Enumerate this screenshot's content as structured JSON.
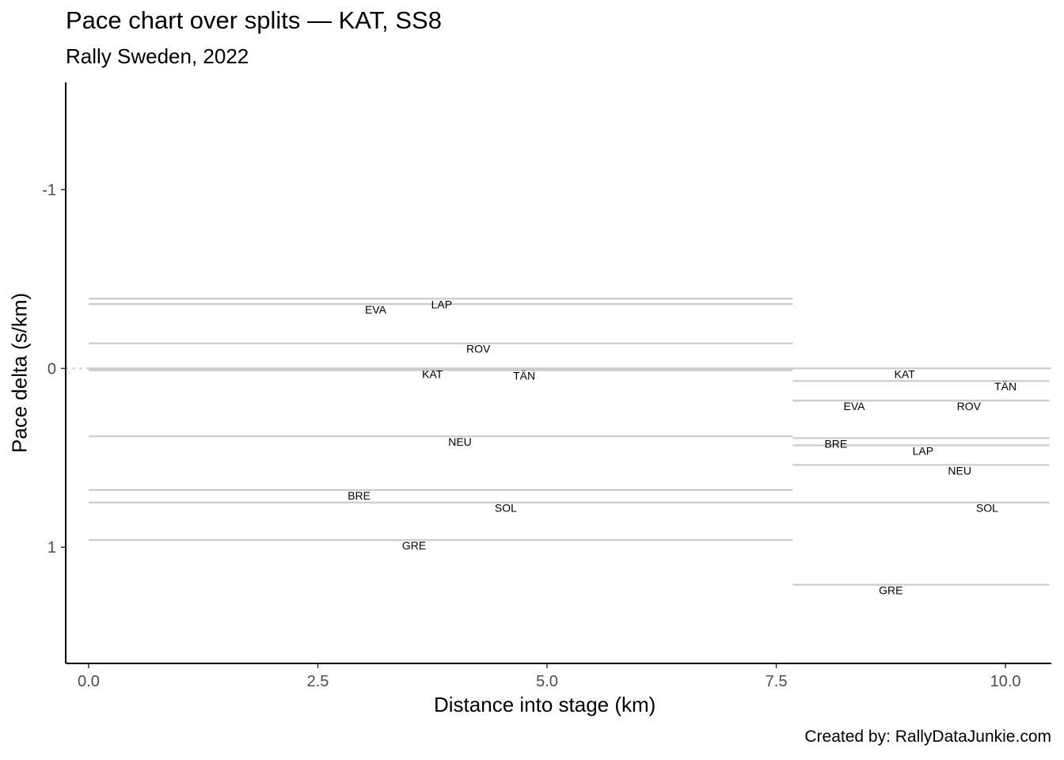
{
  "chart_data": {
    "type": "line",
    "title": "Pace chart over splits — KAT, SS8",
    "subtitle": "Rally Sweden, 2022",
    "xlabel": "Distance into stage (km)",
    "ylabel": "Pace delta (s/km)",
    "caption": "Created by: RallyDataJunkie.com",
    "xlim": [
      -0.25,
      10.5
    ],
    "ylim": [
      1.65,
      -1.6
    ],
    "y_reversed": true,
    "x_ticks": [
      {
        "value": 0.0,
        "label": "0.0"
      },
      {
        "value": 2.5,
        "label": "2.5"
      },
      {
        "value": 5.0,
        "label": "5.0"
      },
      {
        "value": 7.5,
        "label": "7.5"
      },
      {
        "value": 10.0,
        "label": "10.0"
      }
    ],
    "y_ticks": [
      {
        "value": -1,
        "label": "-1"
      },
      {
        "value": 0,
        "label": "0"
      },
      {
        "value": 1,
        "label": "1"
      }
    ],
    "reference_line": {
      "y": 0,
      "style": "dotted",
      "color": "#cccccc"
    },
    "line_color": "#cccccc",
    "splits": [
      {
        "x_start": 0.0,
        "x_end": 7.68,
        "series": [
          {
            "name": "LAP",
            "value": -0.39,
            "label_x": 3.85
          },
          {
            "name": "EVA",
            "value": -0.36,
            "label_x": 3.13
          },
          {
            "name": "ROV",
            "value": -0.14,
            "label_x": 4.25
          },
          {
            "name": "KAT",
            "value": 0.0,
            "label_x": 3.75
          },
          {
            "name": "TÄN",
            "value": 0.01,
            "label_x": 4.75
          },
          {
            "name": "NEU",
            "value": 0.38,
            "label_x": 4.05
          },
          {
            "name": "BRE",
            "value": 0.68,
            "label_x": 2.95
          },
          {
            "name": "SOL",
            "value": 0.75,
            "label_x": 4.55
          },
          {
            "name": "GRE",
            "value": 0.96,
            "label_x": 3.55
          }
        ]
      },
      {
        "x_start": 7.68,
        "x_end": 10.48,
        "series": [
          {
            "name": "KAT",
            "value": 0.0,
            "label_x": 8.9
          },
          {
            "name": "TÄN",
            "value": 0.07,
            "label_x": 10.0
          },
          {
            "name": "EVA",
            "value": 0.18,
            "label_x": 8.35
          },
          {
            "name": "ROV",
            "value": 0.18,
            "label_x": 9.6
          },
          {
            "name": "BRE",
            "value": 0.39,
            "label_x": 8.15
          },
          {
            "name": "LAP",
            "value": 0.43,
            "label_x": 9.1
          },
          {
            "name": "NEU",
            "value": 0.54,
            "label_x": 9.5
          },
          {
            "name": "SOL",
            "value": 0.75,
            "label_x": 9.8
          },
          {
            "name": "GRE",
            "value": 1.21,
            "label_x": 8.75
          }
        ]
      }
    ]
  }
}
